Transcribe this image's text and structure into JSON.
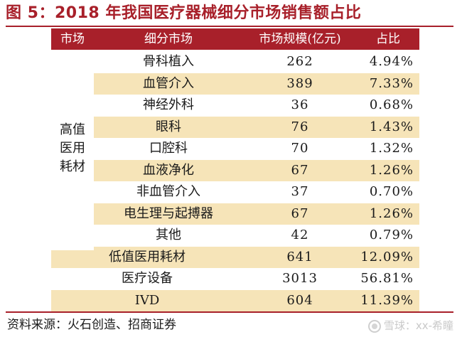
{
  "title": "图 5：2018 年我国医疗器械细分市场销售额占比",
  "table": {
    "headers": [
      "市场",
      "细分市场",
      "市场规模(亿元)",
      "占比"
    ],
    "group_label": "高值\n医用\n耗材",
    "rows": [
      {
        "name": "骨科植入",
        "value": "262",
        "share": "4.94%",
        "shaded": false
      },
      {
        "name": "血管介入",
        "value": "389",
        "share": "7.33%",
        "shaded": true
      },
      {
        "name": "神经外科",
        "value": "36",
        "share": "0.68%",
        "shaded": false
      },
      {
        "name": "眼科",
        "value": "76",
        "share": "1.43%",
        "shaded": true
      },
      {
        "name": "口腔科",
        "value": "70",
        "share": "1.32%",
        "shaded": false
      },
      {
        "name": "血液净化",
        "value": "67",
        "share": "1.26%",
        "shaded": true
      },
      {
        "name": "非血管介入",
        "value": "37",
        "share": "0.70%",
        "shaded": false
      },
      {
        "name": "电生理与起搏器",
        "value": "67",
        "share": "1.26%",
        "shaded": true
      },
      {
        "name": "其他",
        "value": "42",
        "share": "0.79%",
        "shaded": false
      },
      {
        "name": "低值医用耗材",
        "value": "641",
        "share": "12.09%",
        "shaded": true
      },
      {
        "name": "医疗设备",
        "value": "3013",
        "share": "56.81%",
        "shaded": false
      },
      {
        "name": "IVD",
        "value": "604",
        "share": "11.39%",
        "shaded": true
      }
    ]
  },
  "source": "资料来源：火石创造、招商证券",
  "watermark": "雪球：xx-希瞳",
  "colors": {
    "accent": "#a8202a",
    "shade": "#f6e4b8"
  }
}
